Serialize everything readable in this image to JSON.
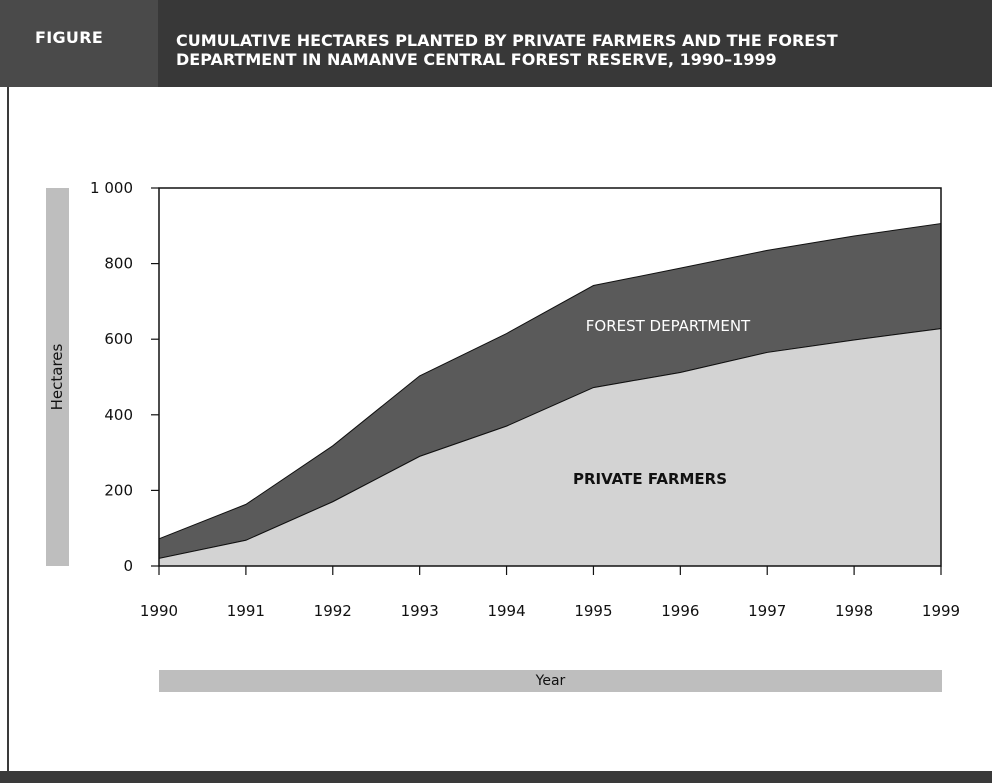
{
  "header": {
    "label": "FIGURE",
    "title_line1": "CUMULATIVE HECTARES PLANTED BY PRIVATE FARMERS AND THE FOREST",
    "title_line2": "DEPARTMENT IN NAMANVE CENTRAL FOREST RESERVE, 1990–1999"
  },
  "chart_data": {
    "type": "area",
    "stacked": true,
    "title": "CUMULATIVE HECTARES PLANTED BY PRIVATE FARMERS AND THE FOREST DEPARTMENT IN NAMANVE CENTRAL FOREST RESERVE, 1990–1999",
    "xlabel": "Year",
    "ylabel": "Hectares",
    "x": [
      1990,
      1991,
      1992,
      1993,
      1994,
      1995,
      1996,
      1997,
      1998,
      1999
    ],
    "xtick_labels": [
      "1990",
      "1991",
      "1992",
      "1993",
      "1994",
      "1995",
      "1996",
      "1997",
      "1998",
      "1999"
    ],
    "ylim": [
      0,
      1000
    ],
    "ytick_values": [
      0,
      200,
      400,
      600,
      800,
      1000
    ],
    "ytick_labels": [
      "0",
      "200",
      "400",
      "600",
      "800",
      "1 000"
    ],
    "series": [
      {
        "name": "PRIVATE FARMERS",
        "color": "#d3d3d3",
        "values": [
          20,
          68,
          170,
          290,
          370,
          472,
          512,
          565,
          598,
          628
        ],
        "label_position": "lower-center"
      },
      {
        "name": "FOREST DEPARTMENT",
        "color": "#5a5a5a",
        "values": [
          52,
          95,
          148,
          213,
          245,
          270,
          276,
          270,
          275,
          278
        ],
        "label_position": "upper-center"
      }
    ],
    "cumulative_totals": [
      72,
      163,
      318,
      503,
      615,
      742,
      788,
      835,
      873,
      906
    ],
    "grid": false,
    "legend": "inline labels"
  }
}
